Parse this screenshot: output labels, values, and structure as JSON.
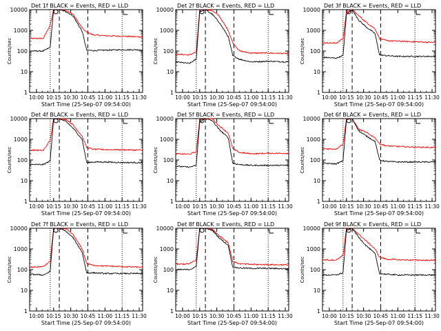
{
  "figure": {
    "xlabel": "Start Time (25-Sep-07 09:54:00)",
    "ylabel": "Counts/sec",
    "x_tick_labels": [
      "10:00",
      "10:15",
      "10:30",
      "10:45",
      "11:00",
      "11:15",
      "11:30"
    ],
    "y_tick_labels": [
      "1",
      "10",
      "100",
      "1000",
      "10000"
    ],
    "colors": {
      "events": "#000000",
      "lld": "#ff0000"
    }
  },
  "chart_data": [
    {
      "type": "line",
      "title": "Det 1f BLACK = Events, RED = LLD",
      "xlabel": "Start Time (25-Sep-07 09:54:00)",
      "ylabel": "Counts/sec",
      "x_range": [
        "09:54",
        "11:33"
      ],
      "ylim": [
        1,
        10000
      ],
      "y_scale": "log",
      "x": [
        "09:54",
        "10:06",
        "10:12",
        "10:15",
        "10:20",
        "10:26",
        "10:32",
        "10:40",
        "10:44",
        "10:50",
        "11:00",
        "11:15",
        "11:33"
      ],
      "series": [
        {
          "values": [
            400,
            410,
            1800,
            10000,
            10000,
            9000,
            6000,
            1300,
            800,
            600,
            550,
            520,
            480
          ]
        },
        {
          "values": [
            100,
            100,
            150,
            10000,
            10000,
            8000,
            5000,
            900,
            110,
            105,
            110,
            115,
            115
          ]
        }
      ],
      "markers": {
        "dotted": [
          "10:12",
          "11:15"
        ],
        "dashed": [
          "10:20",
          "10:45"
        ]
      }
    },
    {
      "type": "line",
      "title": "Det 2f BLACK = Events, RED = LLD",
      "xlabel": "Start Time (25-Sep-07 09:54:00)",
      "ylabel": "Counts/sec",
      "x_range": [
        "09:54",
        "11:33"
      ],
      "ylim": [
        1,
        10000
      ],
      "y_scale": "log",
      "x": [
        "09:54",
        "10:06",
        "10:12",
        "10:15",
        "10:20",
        "10:26",
        "10:32",
        "10:40",
        "10:44",
        "10:50",
        "11:00",
        "11:15",
        "11:33"
      ],
      "series": [
        {
          "values": [
            70,
            65,
            90,
            10000,
            10000,
            9000,
            5000,
            1000,
            250,
            100,
            80,
            80,
            75
          ]
        },
        {
          "values": [
            30,
            25,
            40,
            8000,
            10000,
            6000,
            2500,
            500,
            60,
            40,
            30,
            32,
            30
          ]
        }
      ],
      "markers": {
        "dotted": [
          "10:12",
          "11:15"
        ],
        "dashed": [
          "10:20",
          "10:45"
        ]
      }
    },
    {
      "type": "line",
      "title": "Det 3f BLACK = Events, RED = LLD",
      "xlabel": "Start Time (25-Sep-07 09:54:00)",
      "ylabel": "Counts/sec",
      "x_range": [
        "09:54",
        "11:33"
      ],
      "ylim": [
        1,
        10000
      ],
      "y_scale": "log",
      "x": [
        "09:54",
        "10:06",
        "10:12",
        "10:15",
        "10:20",
        "10:26",
        "10:32",
        "10:40",
        "10:44",
        "10:50",
        "11:00",
        "11:15",
        "11:33"
      ],
      "series": [
        {
          "values": [
            250,
            240,
            400,
            8000,
            10000,
            5000,
            2500,
            1200,
            400,
            320,
            300,
            280,
            260
          ]
        },
        {
          "values": [
            50,
            45,
            60,
            6000,
            10000,
            3000,
            1500,
            700,
            65,
            60,
            55,
            55,
            55
          ]
        }
      ],
      "markers": {
        "dotted": [
          "10:12",
          "11:15"
        ],
        "dashed": [
          "10:20",
          "10:45"
        ]
      }
    },
    {
      "type": "line",
      "title": "Det 4f BLACK = Events, RED = LLD",
      "xlabel": "Start Time (25-Sep-07 09:54:00)",
      "ylabel": "Counts/sec",
      "x_range": [
        "09:54",
        "11:33"
      ],
      "ylim": [
        1,
        10000
      ],
      "y_scale": "log",
      "x": [
        "09:54",
        "10:06",
        "10:12",
        "10:15",
        "10:20",
        "10:26",
        "10:32",
        "10:40",
        "10:44",
        "10:50",
        "11:00",
        "11:15",
        "11:33"
      ],
      "series": [
        {
          "values": [
            300,
            290,
            900,
            10000,
            10000,
            9000,
            5000,
            1400,
            400,
            330,
            320,
            310,
            300
          ]
        },
        {
          "values": [
            60,
            60,
            90,
            10000,
            10000,
            7000,
            3500,
            1000,
            75,
            80,
            80,
            75,
            75
          ]
        }
      ],
      "markers": {
        "dotted": [
          "10:12",
          "11:15"
        ],
        "dashed": [
          "10:20",
          "10:45"
        ]
      }
    },
    {
      "type": "line",
      "title": "Det 5f BLACK = Events, RED = LLD",
      "xlabel": "Start Time (25-Sep-07 09:54:00)",
      "ylabel": "Counts/sec",
      "x_range": [
        "09:54",
        "11:33"
      ],
      "ylim": [
        1,
        10000
      ],
      "y_scale": "log",
      "x": [
        "09:54",
        "10:06",
        "10:12",
        "10:15",
        "10:20",
        "10:26",
        "10:32",
        "10:40",
        "10:44",
        "10:50",
        "11:00",
        "11:15",
        "11:33"
      ],
      "series": [
        {
          "values": [
            200,
            190,
            250,
            9000,
            10000,
            10000,
            4500,
            2000,
            350,
            230,
            200,
            210,
            210
          ]
        },
        {
          "values": [
            50,
            45,
            55,
            7000,
            10000,
            8000,
            3000,
            1200,
            70,
            60,
            55,
            55,
            55
          ]
        }
      ],
      "markers": {
        "dotted": [
          "10:12",
          "11:15"
        ],
        "dashed": [
          "10:20",
          "10:45"
        ]
      }
    },
    {
      "type": "line",
      "title": "Det 6f BLACK = Events, RED = LLD",
      "xlabel": "Start Time (25-Sep-07 09:54:00)",
      "ylabel": "Counts/sec",
      "x_range": [
        "09:54",
        "11:33"
      ],
      "ylim": [
        1,
        10000
      ],
      "y_scale": "log",
      "x": [
        "09:54",
        "10:06",
        "10:12",
        "10:15",
        "10:20",
        "10:26",
        "10:32",
        "10:40",
        "10:44",
        "10:50",
        "11:00",
        "11:15",
        "11:33"
      ],
      "series": [
        {
          "values": [
            350,
            340,
            600,
            10000,
            10000,
            3000,
            2200,
            1200,
            600,
            480,
            450,
            420,
            400
          ]
        },
        {
          "values": [
            70,
            65,
            90,
            9000,
            10000,
            2500,
            1500,
            800,
            100,
            85,
            80,
            80,
            80
          ]
        }
      ],
      "markers": {
        "dotted": [
          "10:12",
          "11:15"
        ],
        "dashed": [
          "10:20",
          "10:45"
        ]
      }
    },
    {
      "type": "line",
      "title": "Det 7f BLACK = Events, RED = LLD",
      "xlabel": "Start Time (25-Sep-07 09:54:00)",
      "ylabel": "Counts/sec",
      "x_range": [
        "09:54",
        "11:33"
      ],
      "ylim": [
        1,
        10000
      ],
      "y_scale": "log",
      "x": [
        "09:54",
        "10:06",
        "10:12",
        "10:15",
        "10:20",
        "10:26",
        "10:32",
        "10:40",
        "10:44",
        "10:50",
        "11:00",
        "11:15",
        "11:33"
      ],
      "series": [
        {
          "values": [
            130,
            140,
            250,
            10000,
            10000,
            9000,
            5000,
            1000,
            200,
            160,
            150,
            140,
            130
          ]
        },
        {
          "values": [
            60,
            55,
            80,
            10000,
            10000,
            7000,
            3500,
            700,
            70,
            70,
            65,
            65,
            65
          ]
        }
      ],
      "markers": {
        "dotted": [
          "10:12",
          "11:15"
        ],
        "dashed": [
          "10:20",
          "10:45"
        ]
      }
    },
    {
      "type": "line",
      "title": "Det 8f BLACK = Events, RED = LLD",
      "xlabel": "Start Time (25-Sep-07 09:54:00)",
      "ylabel": "Counts/sec",
      "x_range": [
        "09:54",
        "11:33"
      ],
      "ylim": [
        1,
        10000
      ],
      "y_scale": "log",
      "x": [
        "09:54",
        "10:06",
        "10:12",
        "10:15",
        "10:20",
        "10:26",
        "10:32",
        "10:40",
        "10:44",
        "10:50",
        "11:00",
        "11:15",
        "11:33"
      ],
      "series": [
        {
          "values": [
            180,
            190,
            300,
            10000,
            10000,
            9000,
            4500,
            2000,
            250,
            190,
            180,
            175,
            170
          ]
        },
        {
          "values": [
            100,
            100,
            140,
            10000,
            10000,
            8000,
            3500,
            1500,
            130,
            120,
            115,
            115,
            110
          ]
        }
      ],
      "markers": {
        "dotted": [
          "10:12",
          "11:15"
        ],
        "dashed": [
          "10:20",
          "10:45"
        ]
      }
    },
    {
      "type": "line",
      "title": "Det 9f BLACK = Events, RED = LLD",
      "xlabel": "Start Time (25-Sep-07 09:54:00)",
      "ylabel": "Counts/sec",
      "x_range": [
        "09:54",
        "11:33"
      ],
      "ylim": [
        1,
        10000
      ],
      "y_scale": "log",
      "x": [
        "09:54",
        "10:06",
        "10:12",
        "10:15",
        "10:20",
        "10:26",
        "10:32",
        "10:40",
        "10:44",
        "10:50",
        "11:00",
        "11:15",
        "11:33"
      ],
      "series": [
        {
          "values": [
            300,
            290,
            500,
            10000,
            10000,
            5000,
            2500,
            1000,
            400,
            320,
            300,
            290,
            280
          ]
        },
        {
          "values": [
            55,
            55,
            70,
            8000,
            10000,
            3500,
            1500,
            600,
            65,
            60,
            55,
            55,
            55
          ]
        }
      ],
      "markers": {
        "dotted": [
          "10:12",
          "11:15"
        ],
        "dashed": [
          "10:20",
          "10:45"
        ]
      }
    }
  ]
}
